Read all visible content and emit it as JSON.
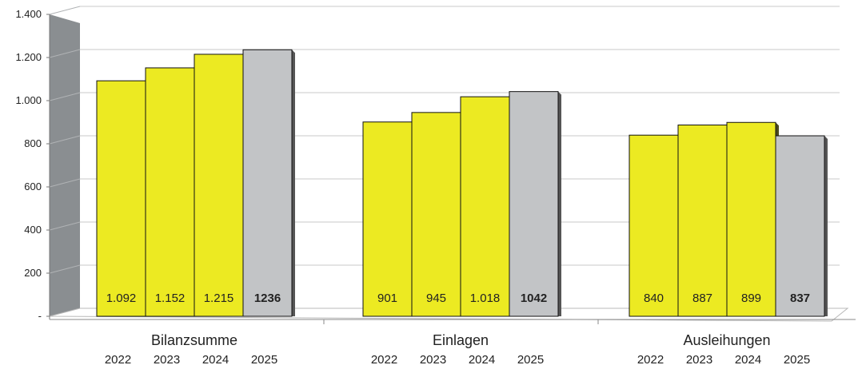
{
  "chart_data": {
    "type": "bar",
    "title": "",
    "xlabel": "",
    "ylabel": "",
    "ylim": [
      0,
      1400
    ],
    "grid": true,
    "yticks": [
      {
        "value": 0,
        "label": "-"
      },
      {
        "value": 200,
        "label": "200"
      },
      {
        "value": 400,
        "label": "400"
      },
      {
        "value": 600,
        "label": "600"
      },
      {
        "value": 800,
        "label": "800"
      },
      {
        "value": 1000,
        "label": "1.000"
      },
      {
        "value": 1200,
        "label": "1.200"
      },
      {
        "value": 1400,
        "label": "1.400"
      }
    ],
    "groups": [
      {
        "name": "Bilanzsumme",
        "bars": [
          {
            "year": "2022",
            "value": 1092,
            "label": "1.092",
            "bold": false
          },
          {
            "year": "2023",
            "value": 1152,
            "label": "1.152",
            "bold": false
          },
          {
            "year": "2024",
            "value": 1215,
            "label": "1.215",
            "bold": false
          },
          {
            "year": "2025",
            "value": 1236,
            "label": "1236",
            "bold": true
          }
        ]
      },
      {
        "name": "Einlagen",
        "bars": [
          {
            "year": "2022",
            "value": 901,
            "label": "901",
            "bold": false
          },
          {
            "year": "2023",
            "value": 945,
            "label": "945",
            "bold": false
          },
          {
            "year": "2024",
            "value": 1018,
            "label": "1.018",
            "bold": false
          },
          {
            "year": "2025",
            "value": 1042,
            "label": "1042",
            "bold": true
          }
        ]
      },
      {
        "name": "Ausleihungen",
        "bars": [
          {
            "year": "2022",
            "value": 840,
            "label": "840",
            "bold": false
          },
          {
            "year": "2023",
            "value": 887,
            "label": "887",
            "bold": false
          },
          {
            "year": "2024",
            "value": 899,
            "label": "899",
            "bold": false
          },
          {
            "year": "2025",
            "value": 837,
            "label": "837",
            "bold": true
          }
        ]
      }
    ],
    "colors": {
      "actual": "#ecea22",
      "actual_side": "#4a4a1c",
      "forecast": "#c2c4c6",
      "forecast_side": "#555555",
      "wall": "#8a8e91",
      "grid": "#c8c8c8"
    }
  }
}
